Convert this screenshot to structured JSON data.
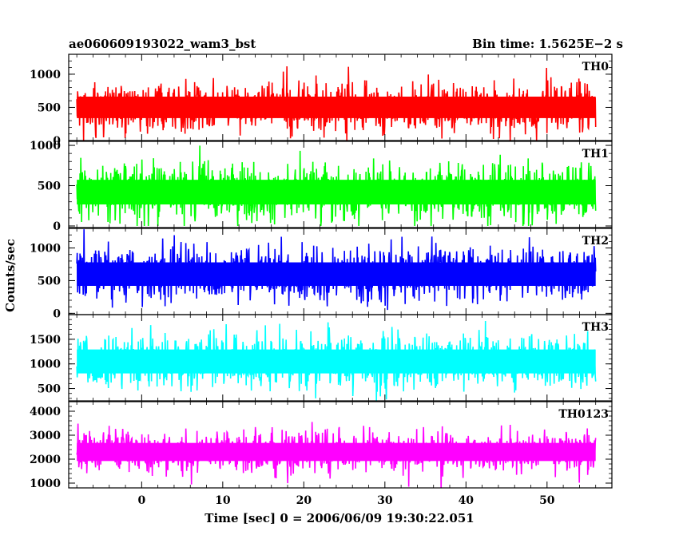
{
  "header": {
    "left": "ae060609193022_wam3_bst",
    "right": "Bin time: 1.5625E−2 s"
  },
  "colors": {
    "th0": "#ff0000",
    "th1": "#00ff00",
    "th2": "#0000ff",
    "th3": "#00ffff",
    "th0123": "#ff00ff"
  },
  "chart_data": {
    "type": "line",
    "ylabel": "Counts/sec",
    "xlabel": "Time [sec] 0 = 2006/06/09 19:30:22.051",
    "xlim": [
      -9,
      58
    ],
    "x_ticks": [
      0,
      10,
      20,
      30,
      40,
      50
    ],
    "x_tick_labels": [
      "0",
      "10",
      "20",
      "30",
      "40",
      "50"
    ],
    "data_range": [
      -8,
      56
    ],
    "panels": [
      {
        "name": "TH0",
        "color": "#ff0000",
        "ylim": [
          0,
          1300
        ],
        "y_ticks": [
          0,
          500,
          1000
        ],
        "y_tick_labels": [
          "0",
          "500",
          "1000"
        ],
        "mean": 500,
        "sd": 180,
        "max": 1300,
        "min": 0
      },
      {
        "name": "TH1",
        "color": "#00ff00",
        "ylim": [
          -20,
          1050
        ],
        "y_ticks": [
          0,
          500,
          1000
        ],
        "y_tick_labels": [
          "0",
          "500",
          "1000"
        ],
        "mean": 420,
        "sd": 170,
        "max": 1050,
        "min": 0
      },
      {
        "name": "TH2",
        "color": "#0000ff",
        "ylim": [
          -20,
          1300
        ],
        "y_ticks": [
          0,
          500,
          1000
        ],
        "y_tick_labels": [
          "0",
          "500",
          "1000"
        ],
        "mean": 600,
        "sd": 200,
        "max": 1300,
        "min": 0
      },
      {
        "name": "TH3",
        "color": "#00ffff",
        "ylim": [
          250,
          2000
        ],
        "y_ticks": [
          500,
          1000,
          1500
        ],
        "y_tick_labels": [
          "500",
          "1000",
          "1500"
        ],
        "mean": 1050,
        "sd": 270,
        "max": 2000,
        "min": 250
      },
      {
        "name": "TH0123",
        "color": "#ff00ff",
        "ylim": [
          800,
          4400
        ],
        "y_ticks": [
          1000,
          2000,
          3000,
          4000
        ],
        "y_tick_labels": [
          "1000",
          "2000",
          "3000",
          "4000"
        ],
        "mean": 2300,
        "sd": 420,
        "max": 4300,
        "min": 700
      }
    ]
  }
}
